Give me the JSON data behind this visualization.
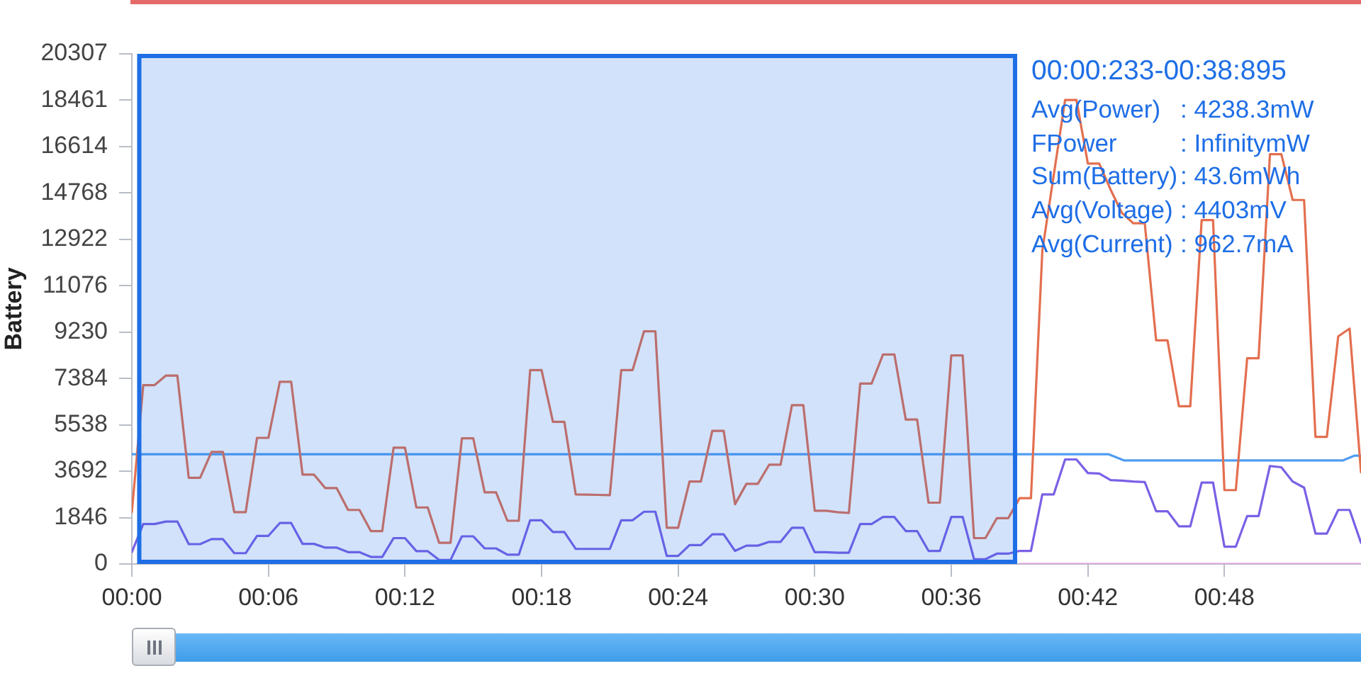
{
  "chart_data": {
    "type": "line",
    "ylabel": "Battery",
    "marker": "none",
    "x": [
      0,
      0.5,
      1,
      1.5,
      2,
      2.5,
      3,
      3.5,
      4,
      4.5,
      5,
      5.5,
      6,
      6.5,
      7,
      7.5,
      8,
      8.5,
      9,
      9.5,
      10,
      10.5,
      11,
      11.5,
      12,
      12.5,
      13,
      13.5,
      14,
      14.5,
      15,
      15.5,
      16,
      16.5,
      17,
      17.5,
      18,
      18.5,
      19,
      19.5,
      20,
      20.5,
      21,
      21.5,
      22,
      22.5,
      23,
      23.5,
      24,
      24.5,
      25,
      25.5,
      26,
      26.5,
      27,
      27.5,
      28,
      28.5,
      29,
      29.5,
      30,
      30.5,
      31,
      31.5,
      32,
      32.5,
      33,
      33.5,
      34,
      34.5,
      35,
      35.5,
      36,
      36.5,
      37,
      37.5,
      38,
      38.5,
      39,
      39.5,
      40,
      40.5,
      41,
      41.5,
      42,
      42.5,
      43,
      43.5,
      44,
      44.5,
      45,
      45.5,
      46,
      46.5,
      47,
      47.5,
      48,
      48.5,
      49,
      49.5,
      50,
      50.5,
      51,
      51.5,
      52,
      52.5,
      53,
      53.5,
      54
    ],
    "xlim": [
      0,
      54
    ],
    "xticks": [
      {
        "value": 0,
        "label": "00:00"
      },
      {
        "value": 6,
        "label": "00:06"
      },
      {
        "value": 12,
        "label": "00:12"
      },
      {
        "value": 18,
        "label": "00:18"
      },
      {
        "value": 24,
        "label": "00:24"
      },
      {
        "value": 30,
        "label": "00:30"
      },
      {
        "value": 36,
        "label": "00:36"
      },
      {
        "value": 42,
        "label": "00:42"
      },
      {
        "value": 48,
        "label": "00:48"
      }
    ],
    "ylim": [
      0,
      20307
    ],
    "yticks": [
      0,
      1846,
      3692,
      5538,
      7384,
      9230,
      11076,
      12922,
      14768,
      16614,
      18461,
      20307
    ],
    "series": [
      {
        "color": "#e36f4f",
        "values": [
          2060,
          7120,
          7120,
          7500,
          7500,
          3430,
          3430,
          4460,
          4460,
          2060,
          2060,
          5020,
          5020,
          7250,
          7250,
          3560,
          3560,
          3020,
          3020,
          2150,
          2150,
          1310,
          1310,
          4630,
          4630,
          2250,
          2250,
          840,
          840,
          5000,
          5000,
          2850,
          2850,
          1720,
          1720,
          7720,
          7720,
          5660,
          5660,
          2770,
          2760,
          2750,
          2740,
          7720,
          7720,
          9260,
          9260,
          1440,
          1440,
          3280,
          3280,
          5300,
          5300,
          2380,
          3190,
          3190,
          3950,
          3950,
          6320,
          6320,
          2120,
          2120,
          2060,
          2030,
          7180,
          7180,
          8340,
          8340,
          5750,
          5750,
          2440,
          2440,
          8300,
          8300,
          1030,
          1030,
          1820,
          1820,
          2620,
          2620,
          12470,
          15470,
          18470,
          18470,
          15940,
          15940,
          14900,
          13970,
          13560,
          13560,
          8900,
          8900,
          6280,
          6280,
          13690,
          13690,
          2940,
          2940,
          8190,
          8190,
          16310,
          16310,
          14490,
          14490,
          5060,
          5060,
          9060,
          9370,
          3650
        ]
      },
      {
        "color": "#7a60e6",
        "values": [
          470,
          1590,
          1590,
          1690,
          1690,
          790,
          790,
          990,
          990,
          430,
          430,
          1120,
          1120,
          1630,
          1630,
          800,
          800,
          650,
          650,
          470,
          470,
          280,
          280,
          1030,
          1030,
          510,
          510,
          160,
          160,
          1100,
          1100,
          620,
          620,
          370,
          370,
          1740,
          1740,
          1270,
          1270,
          600,
          600,
          600,
          600,
          1740,
          1740,
          2080,
          2080,
          320,
          320,
          750,
          750,
          1180,
          1180,
          520,
          730,
          730,
          880,
          880,
          1440,
          1440,
          470,
          470,
          450,
          450,
          1590,
          1590,
          1870,
          1870,
          1310,
          1310,
          520,
          520,
          1870,
          1870,
          190,
          190,
          410,
          410,
          520,
          520,
          2770,
          2770,
          4160,
          4160,
          3620,
          3600,
          3340,
          3320,
          3280,
          3260,
          2100,
          2100,
          1500,
          1500,
          3240,
          3240,
          690,
          690,
          1910,
          1910,
          3900,
          3850,
          3280,
          3040,
          1210,
          1210,
          2150,
          2150,
          840
        ]
      },
      {
        "x": [
          0,
          42.9,
          43.6,
          53.2,
          53.7,
          54
        ],
        "color": "#4f9cf2",
        "values": [
          4370,
          4370,
          4120,
          4120,
          4310,
          4310
        ]
      },
      {
        "x": [
          39,
          54
        ],
        "color": "#e0a0e0",
        "values": [
          0,
          0
        ]
      }
    ],
    "bands": [
      {
        "axis": "x",
        "from": 0.233,
        "to": 38.895,
        "color": "#1e6ee6"
      }
    ],
    "annotations": [
      "00:00:233-00:38:895",
      "Avg(Power) : 4238.3mW",
      "FPower : InfinitymW",
      "Sum(Battery): 43.6mWh",
      "Avg(Voltage) : 4403mV",
      "Avg(Current) : 962.7mA"
    ]
  }
}
